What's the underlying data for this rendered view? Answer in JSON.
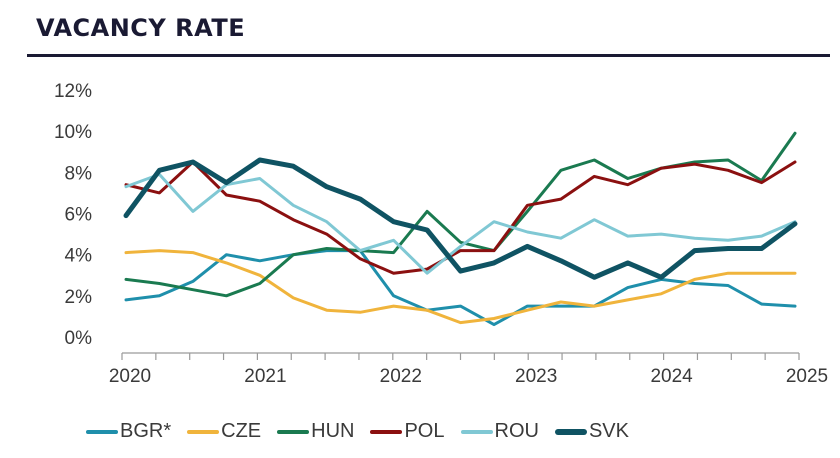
{
  "chart_data": {
    "type": "line",
    "title": "VACANCY RATE",
    "xlabel": "",
    "ylabel": "",
    "x": [
      "2020Q1",
      "2020Q2",
      "2020Q3",
      "2020Q4",
      "2021Q1",
      "2021Q2",
      "2021Q3",
      "2021Q4",
      "2022Q1",
      "2022Q2",
      "2022Q3",
      "2022Q4",
      "2023Q1",
      "2023Q2",
      "2023Q3",
      "2023Q4",
      "2024Q1",
      "2024Q2",
      "2024Q3",
      "2024Q4",
      "2025Q1"
    ],
    "xtick_labels": [
      "2020",
      "2021",
      "2022",
      "2023",
      "2024",
      "2025"
    ],
    "ytick_labels": [
      "0%",
      "2%",
      "4%",
      "6%",
      "8%",
      "10%",
      "12%"
    ],
    "ylim": [
      0,
      12
    ],
    "yticks": [
      0,
      2,
      4,
      6,
      8,
      10,
      12
    ],
    "grid": false,
    "legend_position": "bottom",
    "series": [
      {
        "name": "BGR*",
        "color": "#1f8fab",
        "emphasis": false,
        "values": [
          1.8,
          2.0,
          2.7,
          4.0,
          3.7,
          4.0,
          4.2,
          4.2,
          2.0,
          1.3,
          1.5,
          0.6,
          1.5,
          1.5,
          1.5,
          2.4,
          2.8,
          2.6,
          2.5,
          1.6,
          1.5
        ]
      },
      {
        "name": "CZE",
        "color": "#f0b43c",
        "emphasis": false,
        "values": [
          4.1,
          4.2,
          4.1,
          3.6,
          3.0,
          1.9,
          1.3,
          1.2,
          1.5,
          1.3,
          0.7,
          0.9,
          1.3,
          1.7,
          1.5,
          1.8,
          2.1,
          2.8,
          3.1,
          3.1,
          3.1
        ]
      },
      {
        "name": "HUN",
        "color": "#1a7a50",
        "emphasis": false,
        "values": [
          2.8,
          2.6,
          2.3,
          2.0,
          2.6,
          4.0,
          4.3,
          4.2,
          4.1,
          6.1,
          4.6,
          4.2,
          6.1,
          8.1,
          8.6,
          7.7,
          8.2,
          8.5,
          8.6,
          7.6,
          9.9
        ]
      },
      {
        "name": "POL",
        "color": "#8b1010",
        "emphasis": false,
        "values": [
          7.4,
          7.0,
          8.5,
          6.9,
          6.6,
          5.7,
          5.0,
          3.8,
          3.1,
          3.3,
          4.2,
          4.2,
          6.4,
          6.7,
          7.8,
          7.4,
          8.2,
          8.4,
          8.1,
          7.5,
          8.5
        ]
      },
      {
        "name": "ROU",
        "color": "#80c8d4",
        "emphasis": false,
        "values": [
          7.3,
          7.9,
          6.1,
          7.4,
          7.7,
          6.4,
          5.6,
          4.2,
          4.7,
          3.1,
          4.4,
          5.6,
          5.1,
          4.8,
          5.7,
          4.9,
          5.0,
          4.8,
          4.7,
          4.9,
          5.6
        ]
      },
      {
        "name": "SVK",
        "color": "#0f5363",
        "emphasis": true,
        "values": [
          5.9,
          8.1,
          8.5,
          7.5,
          8.6,
          8.3,
          7.3,
          6.7,
          5.6,
          5.2,
          3.2,
          3.6,
          4.4,
          3.7,
          2.9,
          3.6,
          2.9,
          4.2,
          4.3,
          4.3,
          5.5
        ]
      }
    ]
  }
}
